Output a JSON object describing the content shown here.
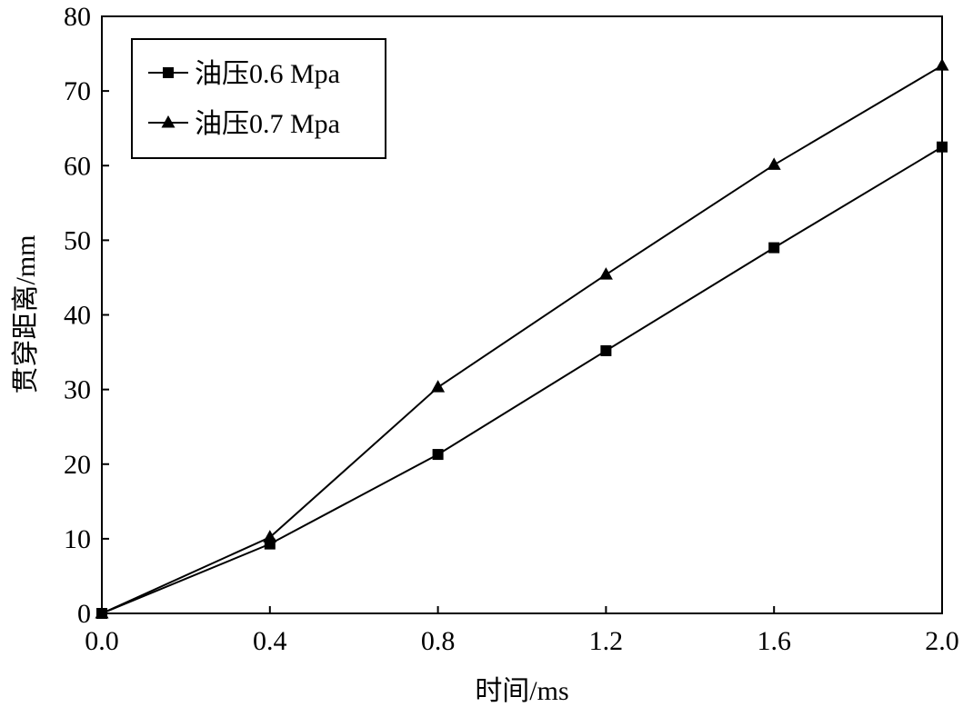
{
  "chart_data": {
    "type": "line",
    "xlabel": "时间/ms",
    "ylabel": "贯穿距离/mm",
    "xlim": [
      0,
      2.0
    ],
    "ylim": [
      0,
      80
    ],
    "xticks": [
      "0.0",
      "0.4",
      "0.8",
      "1.2",
      "1.6",
      "2.0"
    ],
    "yticks": [
      "0",
      "10",
      "20",
      "30",
      "40",
      "50",
      "60",
      "70",
      "80"
    ],
    "grid": false,
    "legend_position": "top-left",
    "x": [
      0.0,
      0.4,
      0.8,
      1.2,
      1.6,
      2.0
    ],
    "series": [
      {
        "name": "油压0.6 Mpa",
        "marker": "square",
        "color": "#000000",
        "values": [
          0,
          9.3,
          21.3,
          35.2,
          49.0,
          62.5
        ]
      },
      {
        "name": "油压0.7 Mpa",
        "marker": "triangle",
        "color": "#000000",
        "values": [
          0,
          10.2,
          30.3,
          45.4,
          60.1,
          73.4
        ]
      }
    ]
  }
}
